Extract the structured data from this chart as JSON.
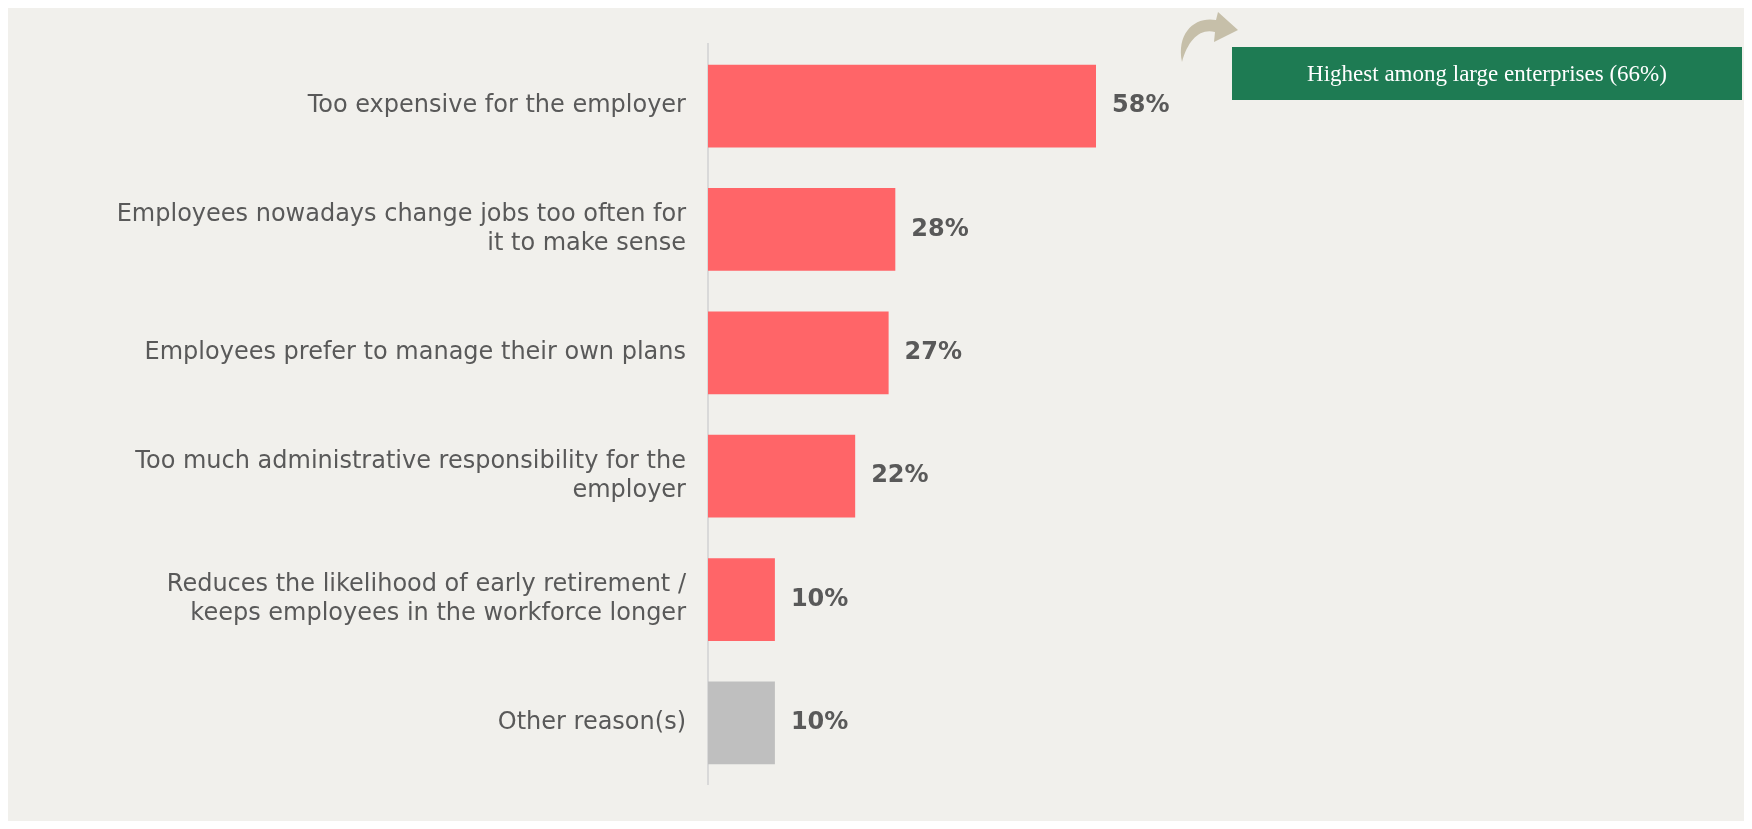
{
  "chart_data": {
    "type": "bar",
    "orientation": "horizontal",
    "categories": [
      "Too expensive for the employer",
      "Employees nowadays change jobs too often for it to make sense",
      "Employees prefer to manage their own plans",
      "Too much administrative responsibility for the employer",
      "Reduces the likelihood of early retirement / keeps employees in the workforce longer",
      "Other reason(s)"
    ],
    "values": [
      58,
      28,
      27,
      22,
      10,
      10
    ],
    "colors": [
      "#ff6568",
      "#ff6568",
      "#ff6568",
      "#ff6568",
      "#ff6568",
      "#bfbfbf"
    ],
    "value_labels": [
      "58%",
      "28%",
      "27%",
      "22%",
      "10%",
      "10%"
    ],
    "annotations": [
      "Highest among large enterprises (66%)"
    ],
    "grid": false,
    "legend": false
  }
}
